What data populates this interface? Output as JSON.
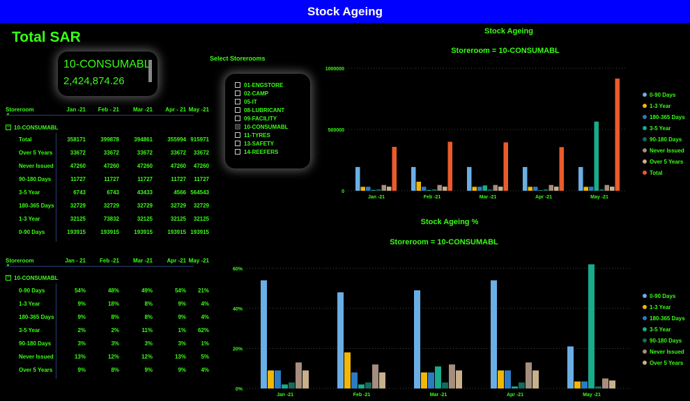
{
  "header": {
    "title": "Stock Ageing"
  },
  "total": {
    "title": "Total SAR",
    "card_name": "10-CONSUMABL",
    "card_value": "2,424,874.26"
  },
  "table1": {
    "storeroom_header": "Storeroom",
    "months": [
      "Jan -21",
      "Feb - 21",
      "Mar -21",
      "Apr - 21",
      "May -21"
    ],
    "group": "10-CONSUMABL",
    "rows": [
      {
        "label": "Total",
        "values": [
          "358171",
          "399878",
          "394861",
          "355994",
          "915971"
        ]
      },
      {
        "label": "Over 5 Years",
        "values": [
          "33672",
          "33672",
          "33672",
          "33672",
          "33672"
        ]
      },
      {
        "label": "Never Issued",
        "values": [
          "47260",
          "47260",
          "47260",
          "47260",
          "47260"
        ]
      },
      {
        "label": "90-180 Days",
        "values": [
          "11727",
          "11727",
          "11727",
          "11727",
          "11727"
        ]
      },
      {
        "label": "3-5 Year",
        "values": [
          "6743",
          "6743",
          "43433",
          "4566",
          "564543"
        ]
      },
      {
        "label": "180-365 Days",
        "values": [
          "32729",
          "32729",
          "32729",
          "32729",
          "32729"
        ]
      },
      {
        "label": "1-3 Year",
        "values": [
          "32125",
          "73832",
          "32125",
          "32125",
          "32125"
        ]
      },
      {
        "label": "0-90 Days",
        "values": [
          "193915",
          "193915",
          "193915",
          "193915",
          "193915"
        ]
      }
    ]
  },
  "table2": {
    "storeroom_header": "Storeroom",
    "months": [
      "Jan - 21",
      "Feb -21",
      "Mar -21",
      "Apr -21",
      "May -21"
    ],
    "group": "10-CONSUMABL",
    "rows": [
      {
        "label": "0-90 Days",
        "values": [
          "54%",
          "48%",
          "49%",
          "54%",
          "21%"
        ]
      },
      {
        "label": "1-3 Year",
        "values": [
          "9%",
          "18%",
          "8%",
          "9%",
          "4%"
        ]
      },
      {
        "label": "180-365 Days",
        "values": [
          "9%",
          "8%",
          "8%",
          "9%",
          "4%"
        ]
      },
      {
        "label": "3-5 Year",
        "values": [
          "2%",
          "2%",
          "11%",
          "1%",
          "62%"
        ]
      },
      {
        "label": "90-180 Days",
        "values": [
          "3%",
          "3%",
          "3%",
          "3%",
          "1%"
        ]
      },
      {
        "label": "Never Issued",
        "values": [
          "13%",
          "12%",
          "12%",
          "13%",
          "5%"
        ]
      },
      {
        "label": "Over 5 Years",
        "values": [
          "9%",
          "8%",
          "9%",
          "9%",
          "4%"
        ]
      }
    ]
  },
  "slicer": {
    "title": "Select Storerooms",
    "items": [
      {
        "label": "01-ENGSTORE",
        "selected": false
      },
      {
        "label": "02-CAMP",
        "selected": false
      },
      {
        "label": "05-IT",
        "selected": false
      },
      {
        "label": "08-LUBRICANT",
        "selected": false
      },
      {
        "label": "09-FACILITY",
        "selected": false
      },
      {
        "label": "10-CONSUMABL",
        "selected": true
      },
      {
        "label": "11-TYRES",
        "selected": false
      },
      {
        "label": "13-SAFETY",
        "selected": false
      },
      {
        "label": "14-REEFERS",
        "selected": false
      }
    ]
  },
  "chart_data": [
    {
      "type": "bar",
      "title": "Stock Ageing",
      "subtitle": "Storeroom = 10-CONSUMABL",
      "categories": [
        "Jan -21",
        "Feb -21",
        "Mar -21",
        "Apr -21",
        "May -21"
      ],
      "y_ticks": [
        "0",
        "500000",
        "1000000"
      ],
      "ylim": [
        0,
        1000000
      ],
      "grid": true,
      "legend_position": "right",
      "series": [
        {
          "name": "0-90 Days",
          "color": "#6aaee6",
          "values": [
            193915,
            193915,
            193915,
            193915,
            193915
          ]
        },
        {
          "name": "1-3 Year",
          "color": "#f2b705",
          "values": [
            32125,
            73832,
            32125,
            32125,
            32125
          ]
        },
        {
          "name": "180-365 Days",
          "color": "#2b7bc4",
          "values": [
            32729,
            32729,
            32729,
            32729,
            32729
          ]
        },
        {
          "name": "3-5 Year",
          "color": "#1aaa8c",
          "values": [
            6743,
            6743,
            43433,
            4566,
            564543
          ]
        },
        {
          "name": "90-180 Days",
          "color": "#156b5c",
          "values": [
            11727,
            11727,
            11727,
            11727,
            11727
          ]
        },
        {
          "name": "Never Issued",
          "color": "#a58e7d",
          "values": [
            47260,
            47260,
            47260,
            47260,
            47260
          ]
        },
        {
          "name": "Over 5 Years",
          "color": "#c8b08a",
          "values": [
            33672,
            33672,
            33672,
            33672,
            33672
          ]
        },
        {
          "name": "Total",
          "color": "#ec5a2c",
          "values": [
            358171,
            399878,
            394861,
            355994,
            915971
          ]
        }
      ]
    },
    {
      "type": "bar",
      "title": "Stock  Ageing %",
      "subtitle": "Storeroom = 10-CONSUMABL",
      "categories": [
        "Jan -21",
        "Feb -21",
        "Mar -21",
        "Apr -21",
        "May -21"
      ],
      "y_ticks": [
        "0%",
        "20%",
        "40%",
        "60%"
      ],
      "ylim": [
        0,
        0.65
      ],
      "grid": true,
      "legend_position": "right",
      "series": [
        {
          "name": "0-90 Days",
          "color": "#6aaee6",
          "values": [
            0.54,
            0.48,
            0.49,
            0.54,
            0.21
          ]
        },
        {
          "name": "1-3 Year",
          "color": "#f2b705",
          "values": [
            0.09,
            0.18,
            0.08,
            0.09,
            0.035
          ]
        },
        {
          "name": "180-365 Days",
          "color": "#2b7bc4",
          "values": [
            0.09,
            0.08,
            0.08,
            0.09,
            0.035
          ]
        },
        {
          "name": "3-5 Year",
          "color": "#1aaa8c",
          "values": [
            0.02,
            0.02,
            0.11,
            0.01,
            0.62
          ]
        },
        {
          "name": "90-180 Days",
          "color": "#156b5c",
          "values": [
            0.03,
            0.03,
            0.03,
            0.03,
            0.01
          ]
        },
        {
          "name": "Never Issued",
          "color": "#a58e7d",
          "values": [
            0.13,
            0.12,
            0.12,
            0.13,
            0.05
          ]
        },
        {
          "name": "Over 5 Years",
          "color": "#c8b08a",
          "values": [
            0.09,
            0.08,
            0.09,
            0.09,
            0.04
          ]
        }
      ]
    }
  ]
}
